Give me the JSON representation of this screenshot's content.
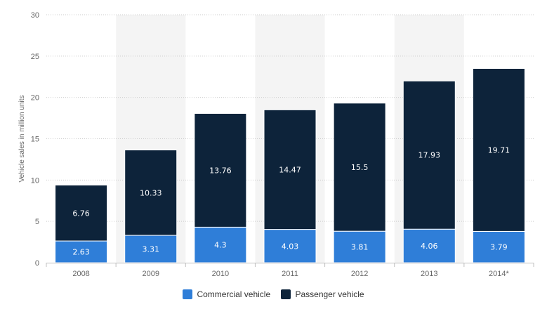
{
  "chart_data": {
    "type": "bar",
    "stacked": true,
    "categories": [
      "2008",
      "2009",
      "2010",
      "2011",
      "2012",
      "2013",
      "2014*"
    ],
    "series": [
      {
        "name": "Commercial vehicle",
        "color": "#2f7ed8",
        "values": [
          2.63,
          3.31,
          4.3,
          4.03,
          3.81,
          4.06,
          3.79
        ]
      },
      {
        "name": "Passenger vehicle",
        "color": "#0d233a",
        "values": [
          6.76,
          10.33,
          13.76,
          14.47,
          15.5,
          17.93,
          19.71
        ]
      }
    ],
    "ylabel": "Vehicle sales in million units",
    "ylim": [
      0,
      30
    ],
    "yticks": [
      0,
      5,
      10,
      15,
      20,
      25,
      30
    ],
    "grid": true,
    "legend_position": "bottom",
    "shaded_categories": [
      "2009",
      "2011",
      "2013"
    ]
  }
}
